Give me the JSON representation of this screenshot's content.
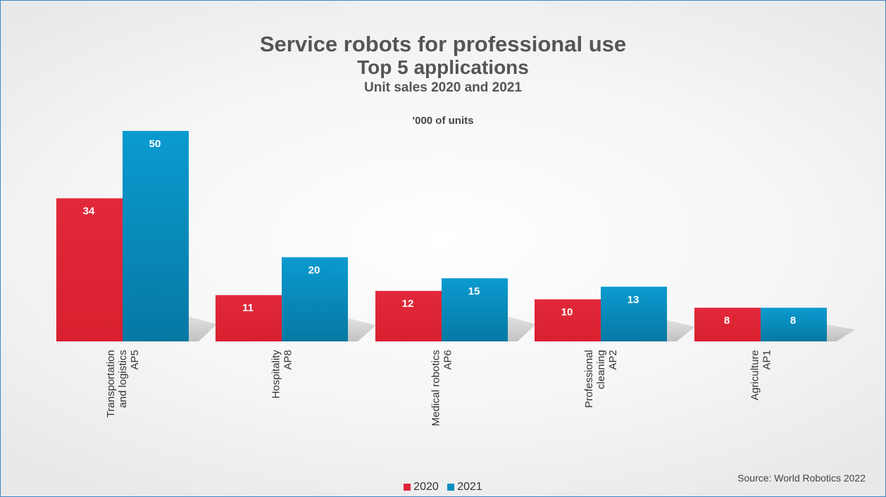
{
  "chart_data": {
    "type": "bar",
    "title": "Service robots for professional use",
    "subtitle": "Top 5 applications",
    "subtitle2": "Unit sales 2020 and 2021",
    "unit_label": "'000 of units",
    "source": "Source: World Robotics 2022",
    "categories": [
      [
        "Transportation",
        "and logistics",
        "AP5"
      ],
      [
        "Hospitality",
        "AP8"
      ],
      [
        "Medical robotics",
        "AP6"
      ],
      [
        "Professional",
        "cleaning",
        "AP2"
      ],
      [
        "Agriculture",
        "AP1"
      ]
    ],
    "series": [
      {
        "name": "2020",
        "values": [
          34,
          11,
          12,
          10,
          8
        ],
        "color": "#e0273a"
      },
      {
        "name": "2021",
        "values": [
          50,
          20,
          15,
          13,
          8
        ],
        "color": "#0a8fc0"
      }
    ],
    "ylim": [
      0,
      50
    ],
    "legend_position": "bottom",
    "grid": false
  }
}
